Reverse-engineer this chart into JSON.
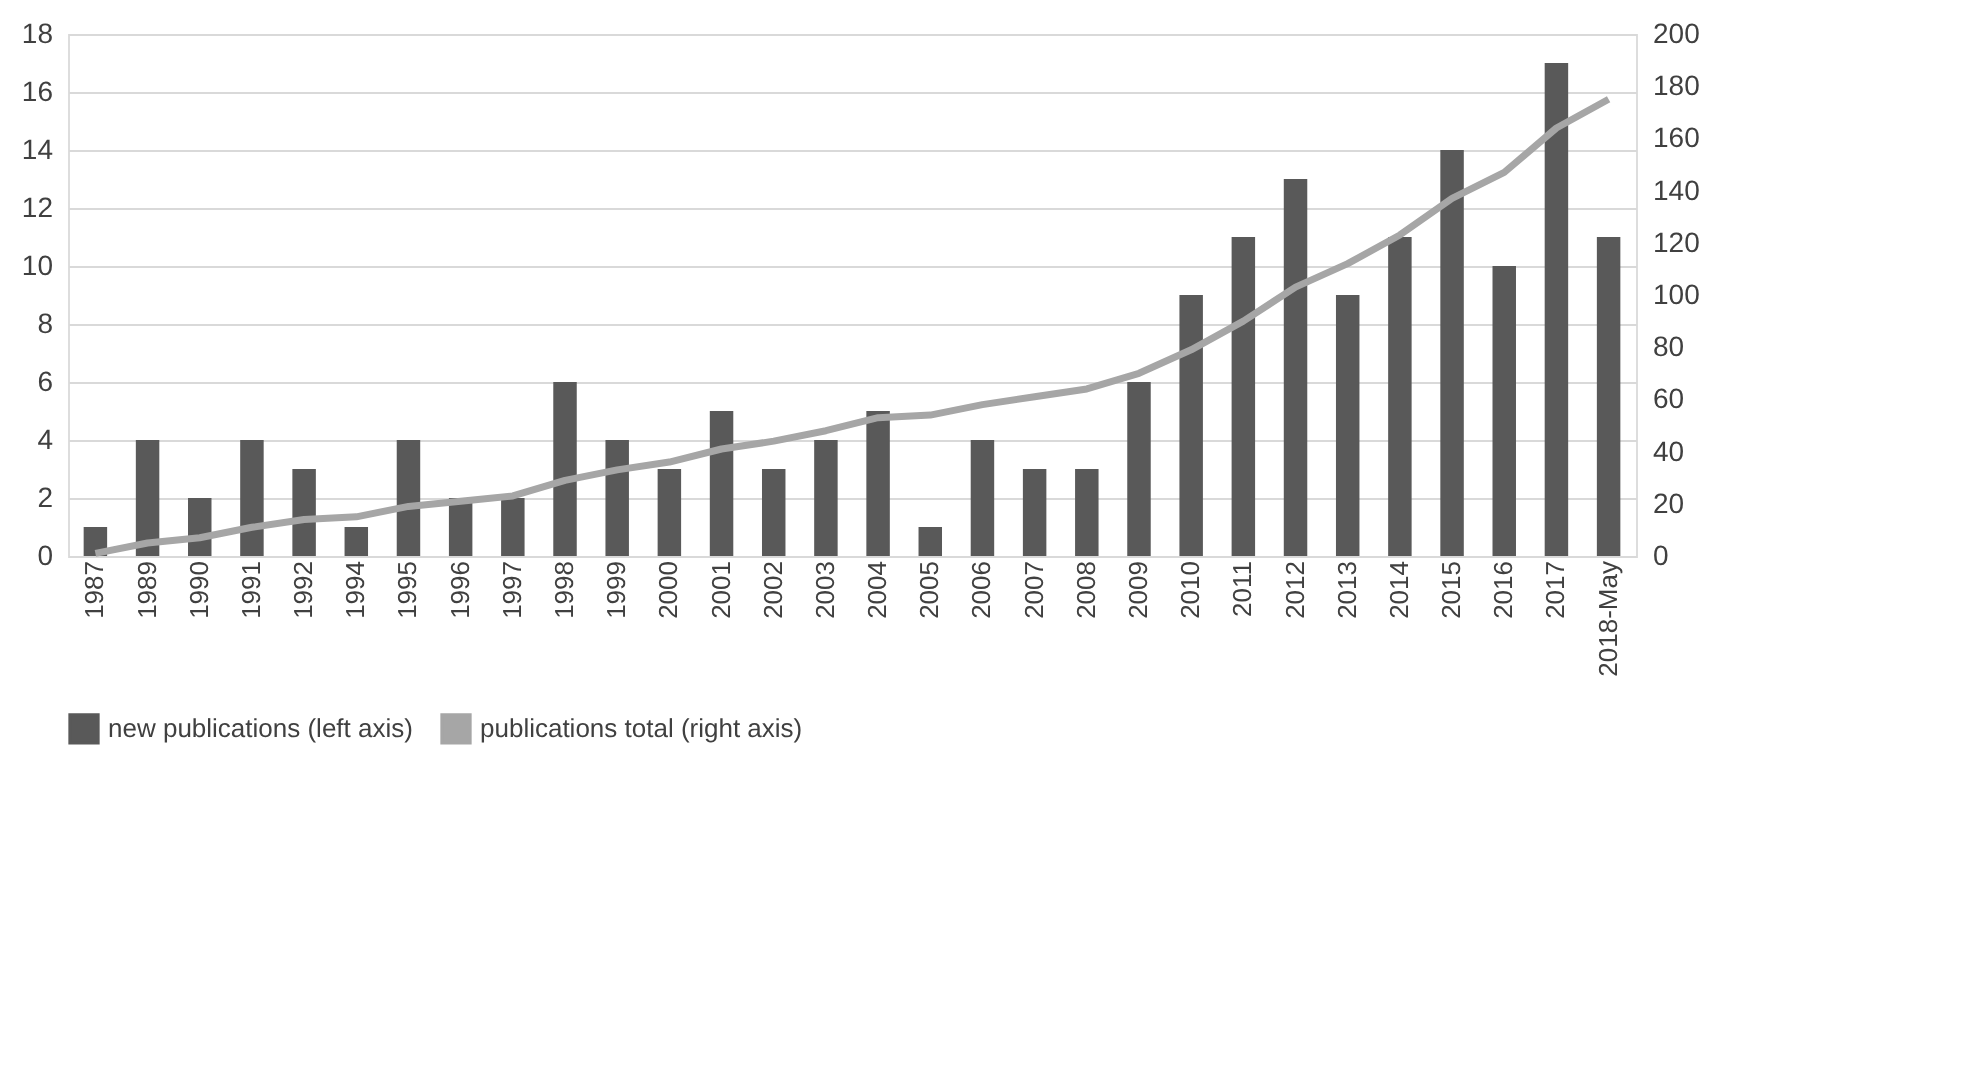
{
  "chart_data": {
    "type": "bar",
    "categories": [
      "1987",
      "1989",
      "1990",
      "1991",
      "1992",
      "1994",
      "1995",
      "1996",
      "1997",
      "1998",
      "1999",
      "2000",
      "2001",
      "2002",
      "2003",
      "2004",
      "2005",
      "2006",
      "2007",
      "2008",
      "2009",
      "2010",
      "2011",
      "2012",
      "2013",
      "2014",
      "2015",
      "2016",
      "2017",
      "2018-May"
    ],
    "series": [
      {
        "name": "new publications (left axis)",
        "color": "#595959",
        "values": [
          1,
          4,
          2,
          4,
          3,
          1,
          4,
          2,
          2,
          6,
          4,
          3,
          5,
          3,
          4,
          5,
          1,
          4,
          3,
          3,
          6,
          9,
          11,
          13,
          9,
          11,
          14,
          10,
          17,
          11
        ]
      },
      {
        "name": "publications total (right axis)",
        "color": "#a6a6a6",
        "type": "line",
        "axis": "y2",
        "values": [
          1,
          5,
          7,
          11,
          14,
          15,
          19,
          21,
          23,
          29,
          33,
          36,
          41,
          44,
          48,
          53,
          54,
          58,
          61,
          64,
          70,
          79,
          90,
          103,
          112,
          123,
          137,
          147,
          164,
          175
        ]
      }
    ],
    "ylim": [
      0,
      18
    ],
    "yticks": [
      0,
      2,
      4,
      6,
      8,
      10,
      12,
      14,
      16,
      18
    ],
    "y2lim": [
      0,
      200
    ],
    "y2ticks": [
      0,
      20,
      40,
      60,
      80,
      100,
      120,
      140,
      160,
      180,
      200
    ],
    "grid": "y",
    "legend": "bottom",
    "marker": "none",
    "line_style": "solid"
  }
}
